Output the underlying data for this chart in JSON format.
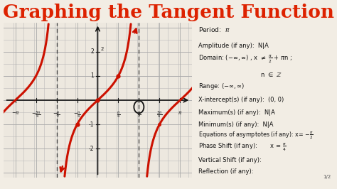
{
  "title": "Graphing the Tangent Function",
  "title_color": "#DD2200",
  "title_fontsize": 19,
  "title_bg": "#111111",
  "panel_bg": "#F2EDE4",
  "graph_bg": "#EDE8DF",
  "grid_color": "#BBBBBB",
  "axis_color": "#111111",
  "curve_color": "#CC1100",
  "dashed_color": "#444444",
  "xlim": [
    -3.6,
    3.6
  ],
  "ylim": [
    -3.2,
    3.2
  ],
  "pi": 3.14159265358979
}
